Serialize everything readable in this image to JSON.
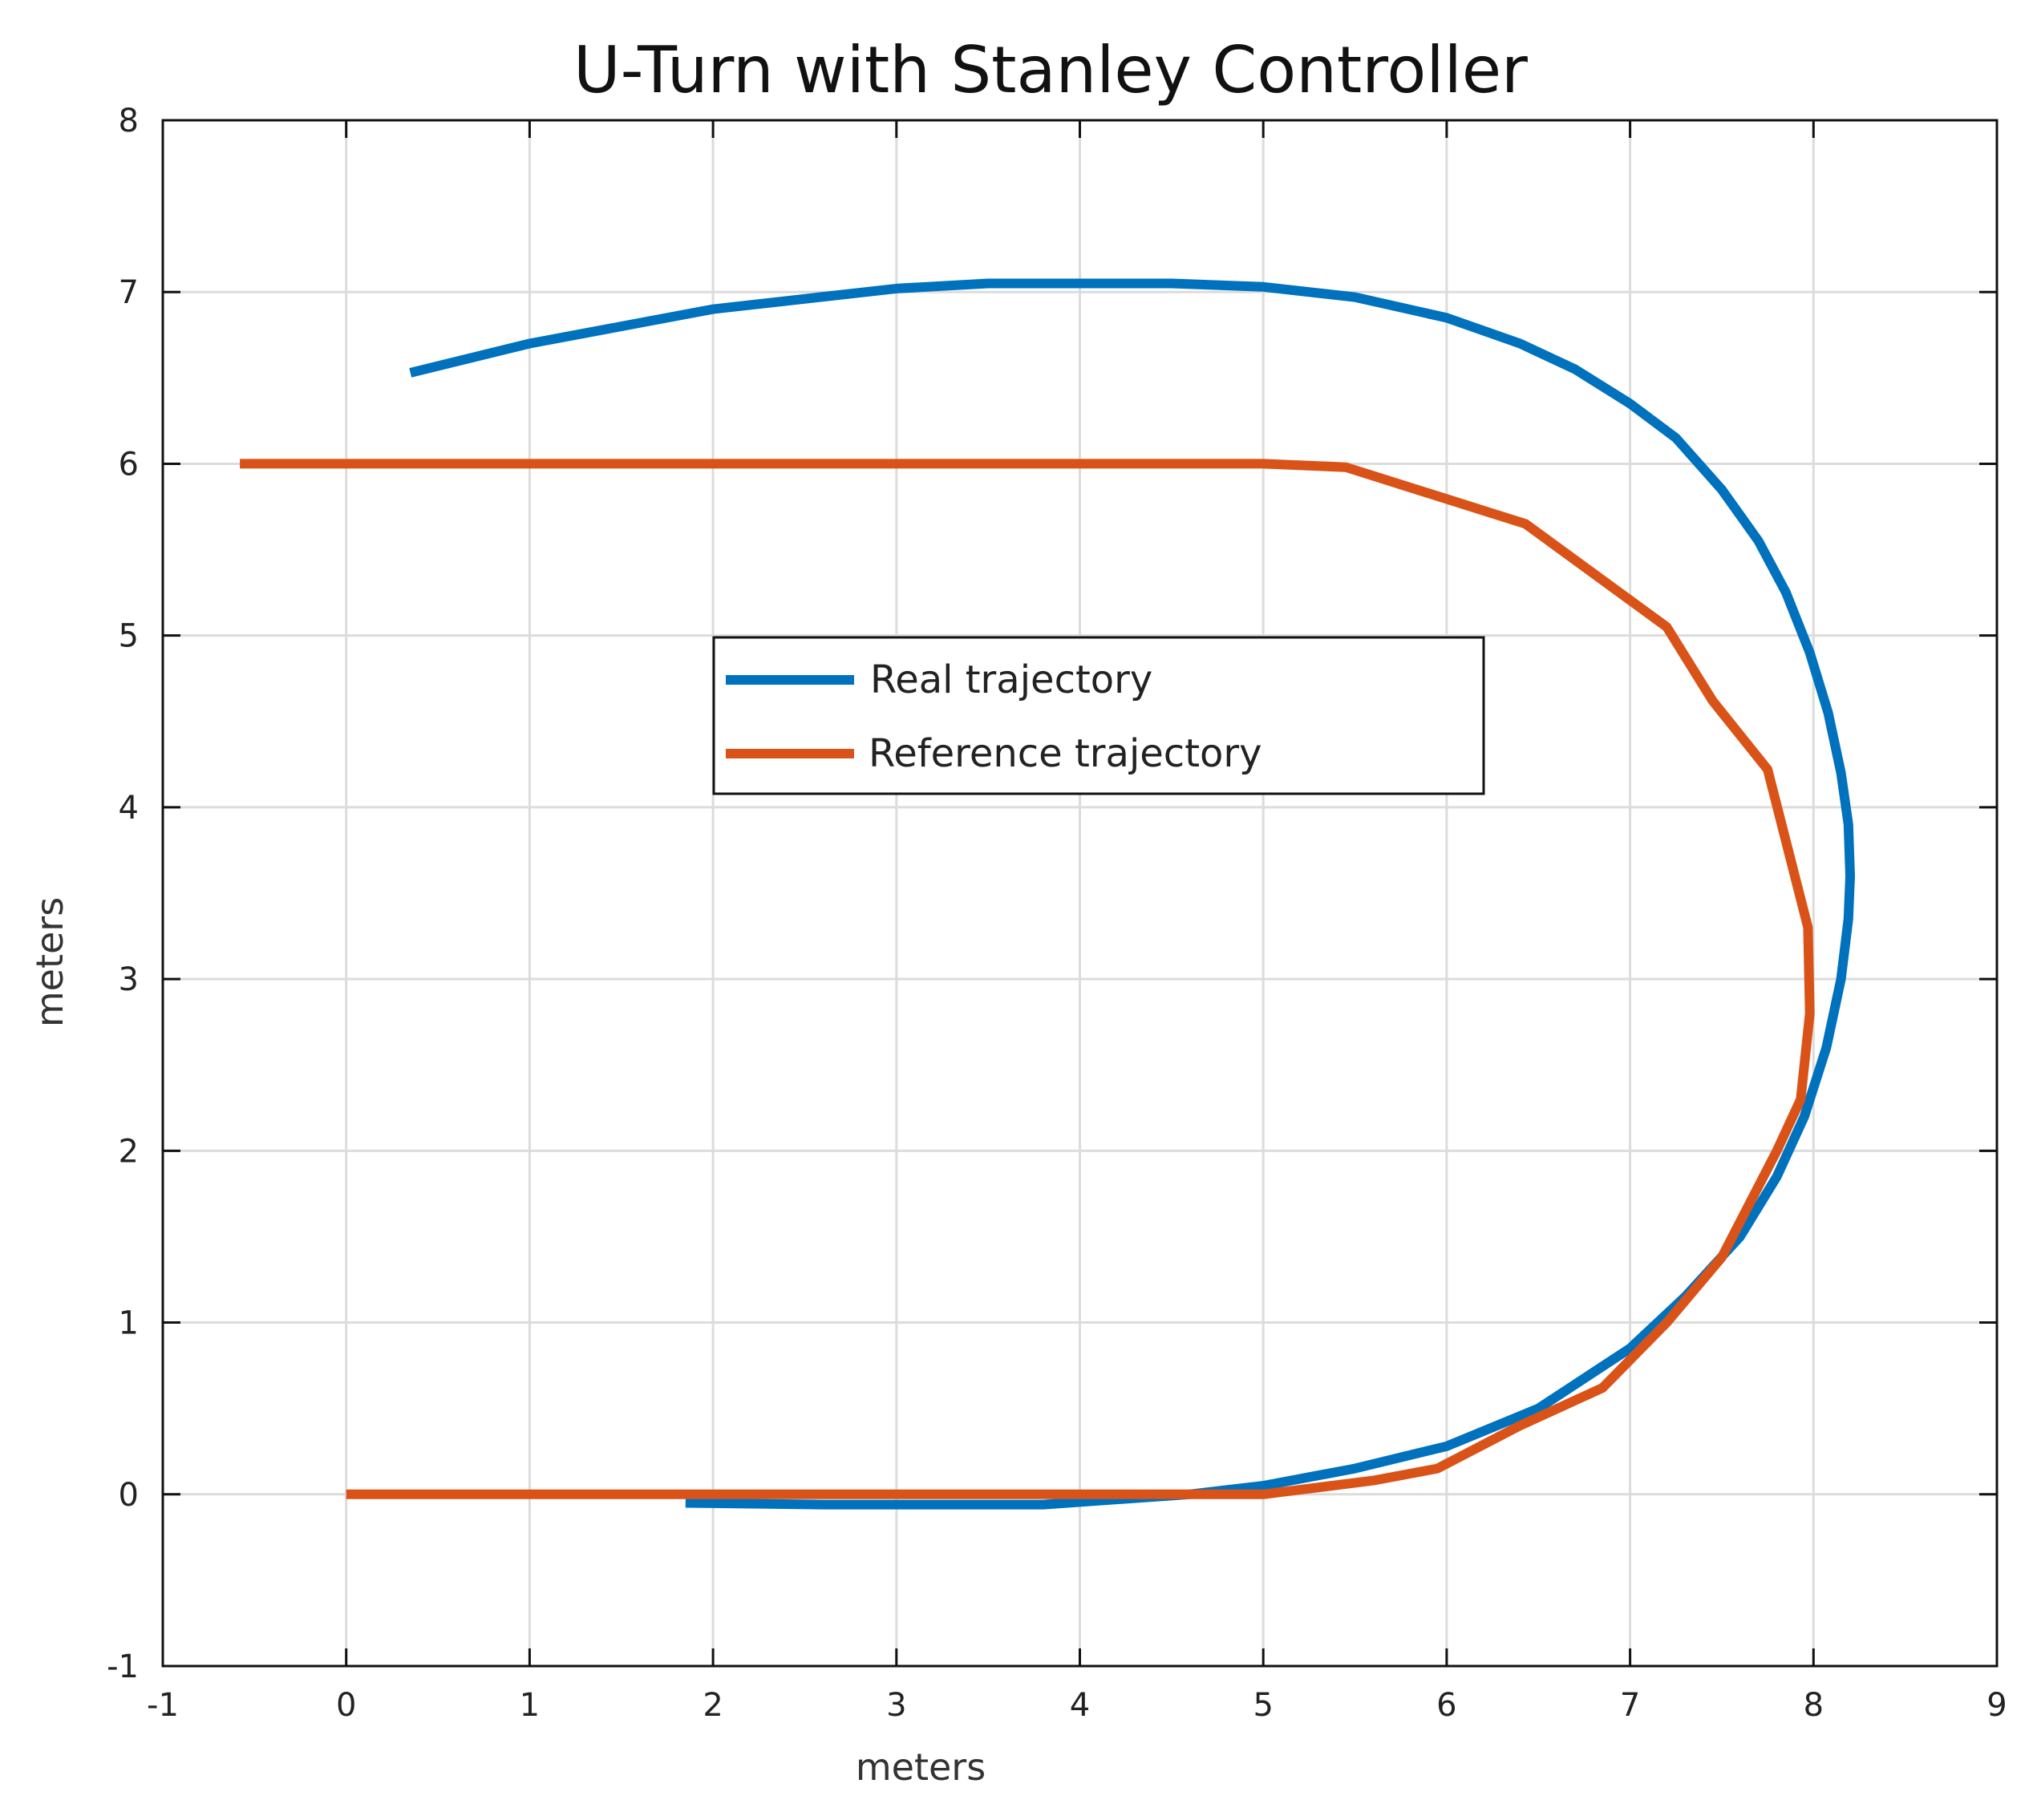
{
  "chart_data": {
    "type": "line",
    "title": "U-Turn with Stanley Controller",
    "xlabel": "meters",
    "ylabel": "meters",
    "xlim": [
      -1,
      9
    ],
    "ylim": [
      -1,
      8
    ],
    "xticks": [
      -1,
      0,
      1,
      2,
      3,
      4,
      5,
      6,
      7,
      8,
      9
    ],
    "yticks": [
      -1,
      0,
      1,
      2,
      3,
      4,
      5,
      6,
      7,
      8
    ],
    "xtick_labels": [
      "-1",
      "0",
      "1",
      "2",
      "3",
      "4",
      "5",
      "6",
      "7",
      "8",
      "9"
    ],
    "ytick_labels": [
      "-1",
      "0",
      "1",
      "2",
      "3",
      "4",
      "5",
      "6",
      "7",
      "8"
    ],
    "grid": true,
    "legend_position": "center",
    "series": [
      {
        "name": "Real trajectory",
        "color": "#0072BD",
        "x": [
          1.85,
          2.6,
          3.8,
          4.6,
          5.0,
          5.5,
          6.0,
          6.5,
          7.0,
          7.3,
          7.6,
          7.8,
          7.95,
          8.07,
          8.15,
          8.19,
          8.2,
          8.19,
          8.15,
          8.08,
          7.98,
          7.85,
          7.7,
          7.5,
          7.25,
          7.0,
          6.7,
          6.4,
          6.0,
          5.5,
          5.0,
          4.5,
          4.0,
          3.5,
          3.0,
          2.0,
          1.0,
          0.35
        ],
        "y": [
          -0.05,
          -0.06,
          -0.06,
          0.0,
          0.05,
          0.15,
          0.28,
          0.5,
          0.85,
          1.15,
          1.5,
          1.85,
          2.2,
          2.6,
          3.0,
          3.35,
          3.6,
          3.9,
          4.2,
          4.55,
          4.9,
          5.25,
          5.55,
          5.85,
          6.15,
          6.35,
          6.55,
          6.7,
          6.85,
          6.97,
          7.03,
          7.05,
          7.05,
          7.05,
          7.02,
          6.9,
          6.7,
          6.53
        ]
      },
      {
        "name": "Reference trajectory",
        "color": "#D95319",
        "x": [
          0.0,
          1.0,
          2.0,
          3.0,
          4.0,
          5.0,
          5.6,
          5.95,
          6.4,
          6.85,
          7.2,
          7.5,
          7.8,
          7.93,
          7.98,
          7.97,
          7.75,
          7.45,
          7.2,
          6.43,
          5.45,
          5.0,
          4.55,
          4.0,
          3.0,
          2.0,
          1.0,
          0.0,
          -0.58
        ],
        "y": [
          0.0,
          0.0,
          0.0,
          0.0,
          0.0,
          0.0,
          0.08,
          0.15,
          0.4,
          0.62,
          1.0,
          1.38,
          2.0,
          2.3,
          2.8,
          3.3,
          4.22,
          4.62,
          5.05,
          5.65,
          5.98,
          6.0,
          6.0,
          6.0,
          6.0,
          6.0,
          6.0,
          6.0,
          6.0
        ]
      }
    ]
  }
}
